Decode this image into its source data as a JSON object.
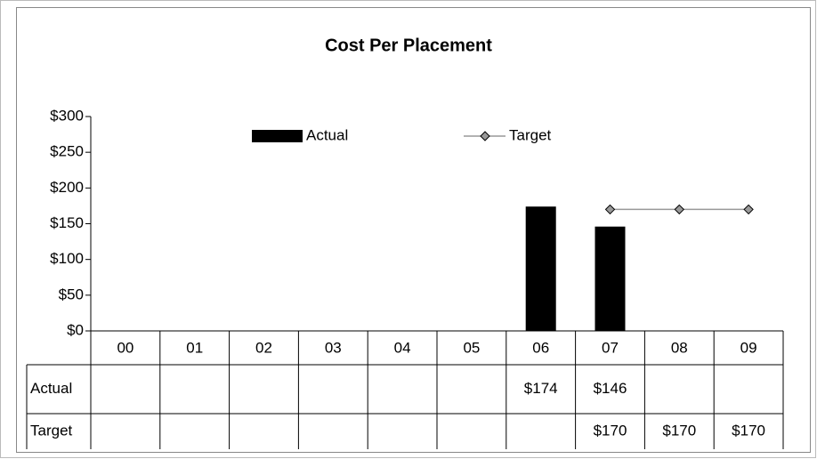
{
  "chart_data": {
    "type": "bar_line_table",
    "title": "Cost Per Placement",
    "categories": [
      "00",
      "01",
      "02",
      "03",
      "04",
      "05",
      "06",
      "07",
      "08",
      "09"
    ],
    "series": [
      {
        "name": "Actual",
        "type": "bar",
        "color": "#000000",
        "values": [
          null,
          null,
          null,
          null,
          null,
          null,
          174,
          146,
          null,
          null
        ],
        "value_labels": [
          null,
          null,
          null,
          null,
          null,
          null,
          "$174",
          "$146",
          null,
          null
        ]
      },
      {
        "name": "Target",
        "type": "line",
        "color": "#999999",
        "values": [
          null,
          null,
          null,
          null,
          null,
          null,
          null,
          170,
          170,
          170
        ],
        "value_labels": [
          null,
          null,
          null,
          null,
          null,
          null,
          null,
          "$170",
          "$170",
          "$170"
        ]
      }
    ],
    "ylim": [
      0,
      300
    ],
    "yticks": [
      {
        "value": 0,
        "label": "$0"
      },
      {
        "value": 50,
        "label": "$50"
      },
      {
        "value": 100,
        "label": "$100"
      },
      {
        "value": 150,
        "label": "$150"
      },
      {
        "value": 200,
        "label": "$200"
      },
      {
        "value": 250,
        "label": "$250"
      },
      {
        "value": 300,
        "label": "$300"
      }
    ],
    "grid": false,
    "legend": "top"
  }
}
